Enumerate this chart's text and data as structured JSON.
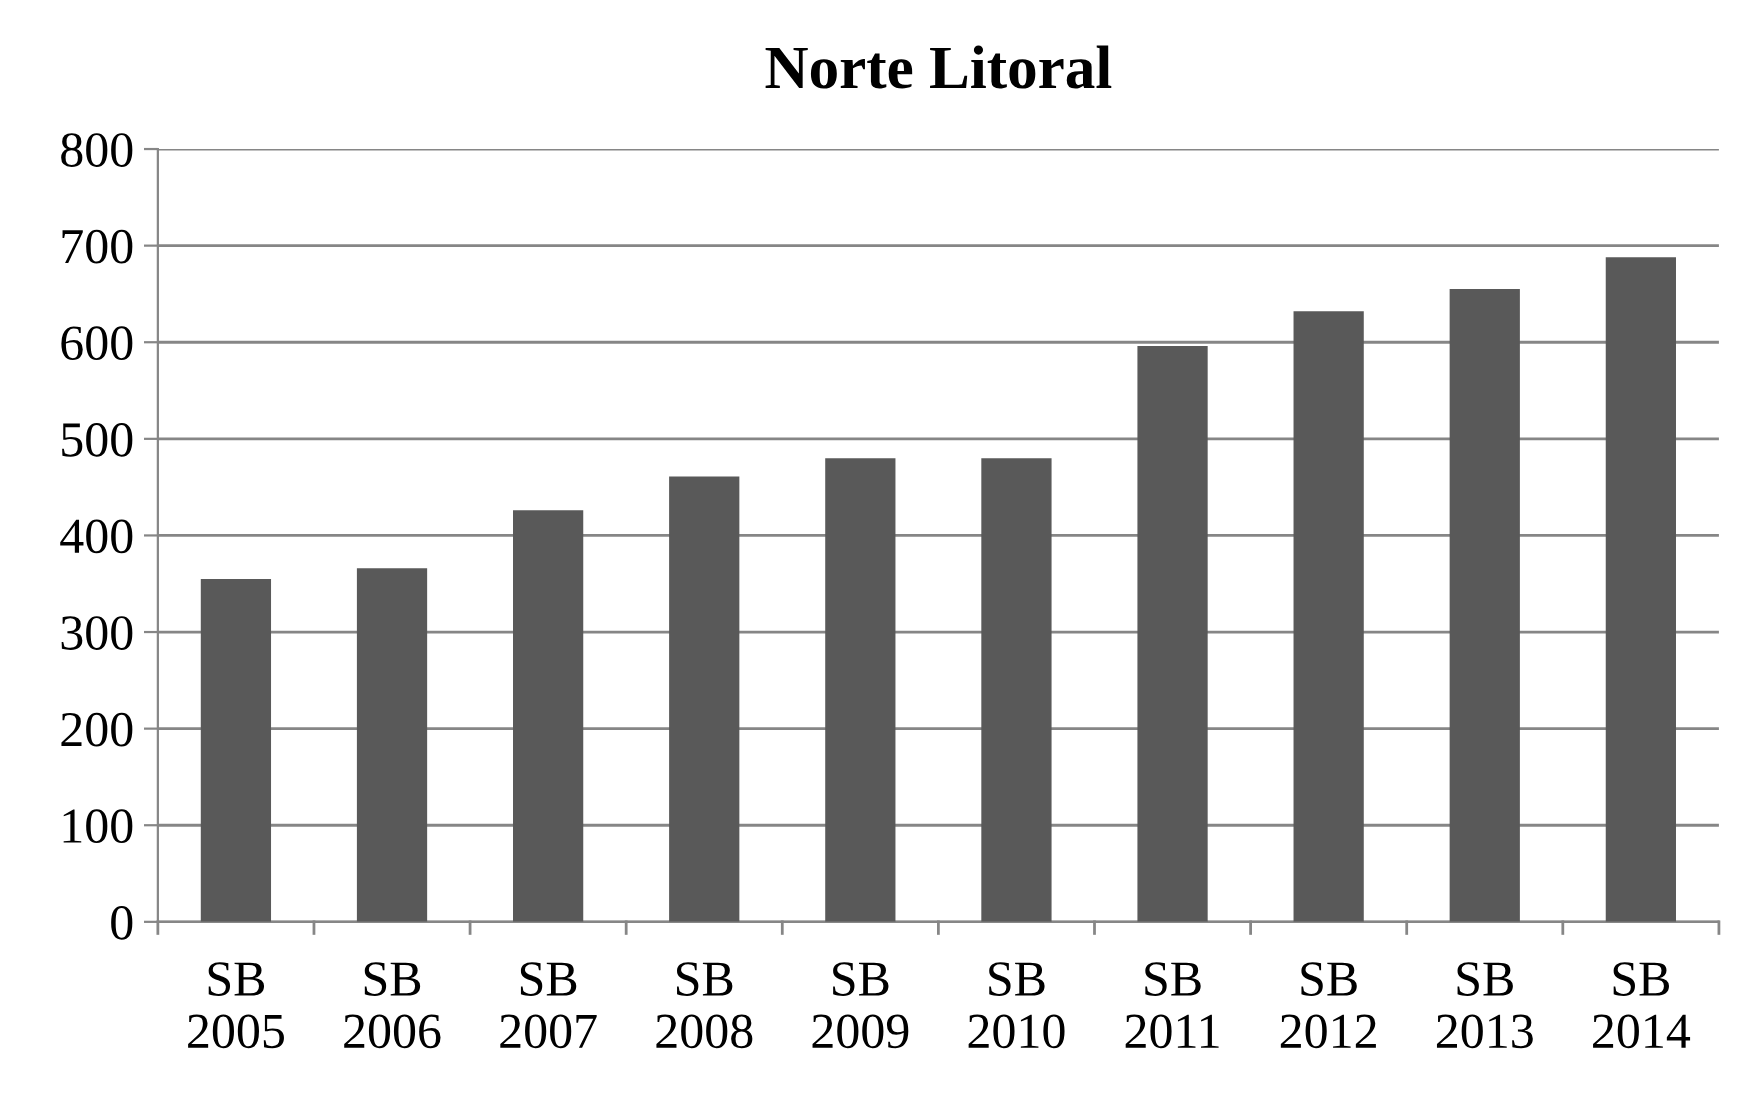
{
  "chart_data": {
    "type": "bar",
    "title": "Norte Litoral",
    "categories": [
      "SB\n2005",
      "SB\n2006",
      "SB\n2007",
      "SB\n2008",
      "SB\n2009",
      "SB\n2010",
      "SB\n2011",
      "SB\n2012",
      "SB\n2013",
      "SB\n2014"
    ],
    "values": [
      355,
      366,
      426,
      461,
      480,
      480,
      596,
      632,
      655,
      688
    ],
    "color": "#595959",
    "ylim": [
      0,
      800
    ],
    "yticks": [
      0,
      100,
      200,
      300,
      400,
      500,
      600,
      700,
      800
    ],
    "grid": "y"
  }
}
